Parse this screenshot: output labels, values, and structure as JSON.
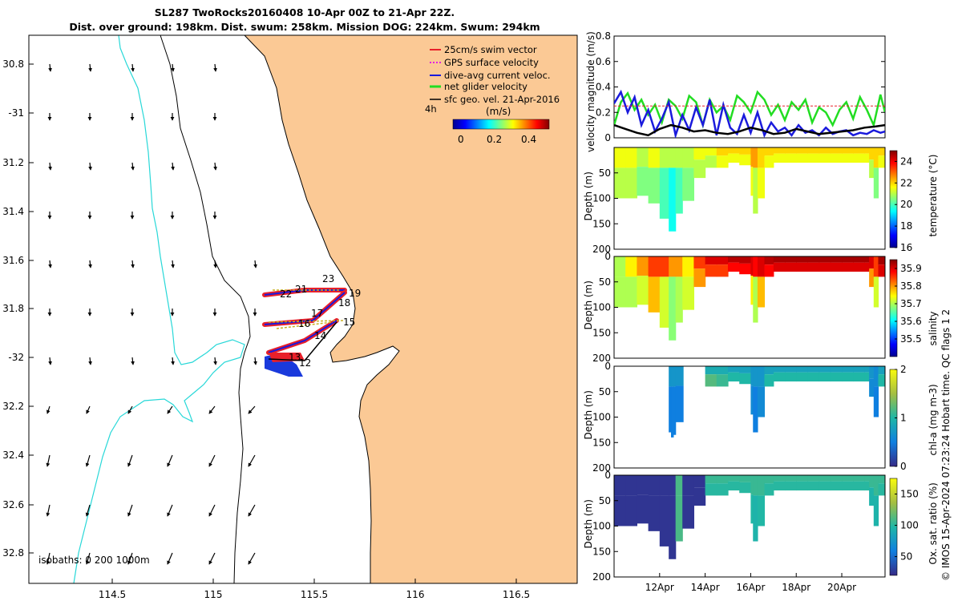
{
  "header": {
    "line1": "SL287 TwoRocks20160408 10-Apr 00Z to 21-Apr 22Z.",
    "line2": "Dist. over ground: 198km. Dist. swum: 258km. Mission DOG: 224km. Swum: 294km"
  },
  "map": {
    "lon_ticks": [
      "114.5",
      "115",
      "115.5",
      "116",
      "116.5"
    ],
    "lat_ticks": [
      "30.8",
      "-31",
      "31.2",
      "31.4",
      "31.6",
      "31.8",
      "-32",
      "32.2",
      "32.4",
      "32.6",
      "32.8"
    ],
    "legend": [
      {
        "label": "25cm/s swim vector",
        "color": "#e8202a"
      },
      {
        "label": "GPS surface velocity",
        "color": "#e020e0"
      },
      {
        "label": "dive-avg current veloc.",
        "color": "#1a1adc"
      },
      {
        "label": "net glider velocity",
        "color": "#22dd22"
      },
      {
        "label": "sfc geo. vel. 21-Apr-2016",
        "color": "#000000"
      }
    ],
    "time_step_label": "4h",
    "colorbar": {
      "title": "(m/s)",
      "ticks": [
        "0",
        "0.2",
        "0.4"
      ]
    },
    "day_labels": [
      "23",
      "21",
      "22",
      "19",
      "18",
      "17",
      "16",
      "15",
      "14",
      "13",
      "12"
    ],
    "isobaths_label": "isobaths: 0   200  1000m"
  },
  "chart_data": [
    {
      "type": "line",
      "title": "velocity magnitude",
      "ylabel": "velocity magnitude (m/s)",
      "ylim": [
        0,
        0.8
      ],
      "yticks": [
        "0",
        "0.2",
        "0.4",
        "0.6",
        "0.8"
      ],
      "xlim_days": [
        10.0,
        21.9
      ],
      "series": [
        {
          "name": "net glider velocity",
          "color": "#22dd22",
          "x": [
            10.0,
            10.3,
            10.6,
            10.9,
            11.2,
            11.5,
            11.8,
            12.1,
            12.4,
            12.7,
            13.0,
            13.3,
            13.6,
            13.9,
            14.2,
            14.5,
            14.8,
            15.1,
            15.4,
            15.7,
            16.0,
            16.3,
            16.6,
            16.9,
            17.2,
            17.5,
            17.8,
            18.1,
            18.4,
            18.7,
            19.0,
            19.3,
            19.6,
            19.9,
            20.2,
            20.5,
            20.8,
            21.1,
            21.4,
            21.7,
            21.9
          ],
          "y": [
            0.1,
            0.28,
            0.35,
            0.22,
            0.3,
            0.18,
            0.26,
            0.12,
            0.3,
            0.25,
            0.15,
            0.33,
            0.28,
            0.1,
            0.3,
            0.2,
            0.25,
            0.14,
            0.33,
            0.28,
            0.2,
            0.36,
            0.3,
            0.18,
            0.26,
            0.14,
            0.28,
            0.22,
            0.3,
            0.12,
            0.24,
            0.2,
            0.1,
            0.22,
            0.28,
            0.15,
            0.32,
            0.22,
            0.1,
            0.34,
            0.2
          ]
        },
        {
          "name": "dive-avg current veloc.",
          "color": "#1a1adc",
          "x": [
            10.0,
            10.3,
            10.6,
            10.9,
            11.2,
            11.5,
            11.8,
            12.1,
            12.4,
            12.7,
            13.0,
            13.3,
            13.6,
            13.9,
            14.2,
            14.5,
            14.8,
            15.1,
            15.4,
            15.7,
            16.0,
            16.3,
            16.6,
            16.9,
            17.2,
            17.5,
            17.8,
            18.1,
            18.4,
            18.7,
            19.0,
            19.3,
            19.6,
            19.9,
            20.2,
            20.5,
            20.8,
            21.1,
            21.4,
            21.7,
            21.9
          ],
          "y": [
            0.27,
            0.36,
            0.2,
            0.32,
            0.1,
            0.22,
            0.05,
            0.15,
            0.28,
            0.02,
            0.18,
            0.06,
            0.24,
            0.1,
            0.3,
            0.02,
            0.26,
            0.08,
            0.03,
            0.18,
            0.04,
            0.2,
            0.02,
            0.12,
            0.05,
            0.08,
            0.02,
            0.1,
            0.04,
            0.06,
            0.02,
            0.08,
            0.03,
            0.05,
            0.06,
            0.02,
            0.04,
            0.03,
            0.06,
            0.04,
            0.05
          ]
        },
        {
          "name": "sfc geo. vel.",
          "color": "#000000",
          "x": [
            10.0,
            10.5,
            11.0,
            11.5,
            12.0,
            12.5,
            13.0,
            13.5,
            14.0,
            14.5,
            15.0,
            15.5,
            16.0,
            16.5,
            17.0,
            17.5,
            18.0,
            18.5,
            19.0,
            19.5,
            20.0,
            20.5,
            21.0,
            21.5,
            21.9
          ],
          "y": [
            0.1,
            0.07,
            0.04,
            0.02,
            0.07,
            0.1,
            0.08,
            0.05,
            0.06,
            0.04,
            0.03,
            0.05,
            0.08,
            0.06,
            0.03,
            0.04,
            0.07,
            0.05,
            0.03,
            0.04,
            0.05,
            0.06,
            0.08,
            0.09,
            0.1
          ]
        },
        {
          "name": "25cm/s swim reference",
          "color": "#e8202a",
          "x": [
            10.0,
            21.9
          ],
          "y": [
            0.25,
            0.25
          ]
        }
      ]
    },
    {
      "type": "heatmap",
      "title": "temperature section",
      "ylabel": "Depth (m)",
      "colorbar_label": "temperature (°C)",
      "clim": [
        16,
        25
      ],
      "cbar_ticks": [
        "16",
        "18",
        "20",
        "22",
        "24"
      ],
      "yticks": [
        "50",
        "100",
        "150",
        "200"
      ],
      "ylim": [
        0,
        200
      ],
      "profile_days": [
        10.0,
        10.5,
        11.0,
        11.5,
        12.0,
        12.4,
        12.7,
        13.0,
        13.5,
        14.0,
        14.5,
        15.0,
        15.5,
        16.0,
        16.1,
        16.3,
        16.6,
        17.0,
        17.5,
        18.0,
        18.5,
        19.0,
        19.5,
        20.0,
        20.5,
        21.0,
        21.2,
        21.4,
        21.6,
        21.9
      ],
      "max_depth_m": [
        100,
        100,
        95,
        110,
        140,
        165,
        130,
        105,
        60,
        40,
        40,
        30,
        35,
        95,
        130,
        100,
        40,
        30,
        30,
        30,
        30,
        30,
        30,
        30,
        30,
        30,
        60,
        100,
        40,
        30
      ],
      "upper_value": [
        21.5,
        21.5,
        21.0,
        21.5,
        21.0,
        21.0,
        21.0,
        21.0,
        21.5,
        21.5,
        22.0,
        22.0,
        22.0,
        22.5,
        22.5,
        22.0,
        22.0,
        22.0,
        22.0,
        22.0,
        22.0,
        22.0,
        22.0,
        22.0,
        22.0,
        22.0,
        22.0,
        22.0,
        22.0,
        22.0
      ],
      "lower_value": [
        21.0,
        21.0,
        20.5,
        20.5,
        20.0,
        19.5,
        20.0,
        20.5,
        21.0,
        21.0,
        21.5,
        21.5,
        21.5,
        21.5,
        21.0,
        21.5,
        21.5,
        21.5,
        21.5,
        21.5,
        21.5,
        21.5,
        21.5,
        21.5,
        21.5,
        21.5,
        21.0,
        20.5,
        21.5,
        21.5
      ]
    },
    {
      "type": "heatmap",
      "title": "salinity section",
      "ylabel": "Depth (m)",
      "colorbar_label": "salinity",
      "clim": [
        35.4,
        35.95
      ],
      "cbar_ticks": [
        "35.5",
        "35.6",
        "35.7",
        "35.8",
        "35.9"
      ],
      "yticks": [
        "0",
        "50",
        "100",
        "150",
        "200"
      ],
      "ylim": [
        0,
        200
      ],
      "profile_days": [
        10.0,
        10.5,
        11.0,
        11.5,
        12.0,
        12.4,
        12.7,
        13.0,
        13.5,
        14.0,
        14.5,
        15.0,
        15.5,
        16.0,
        16.1,
        16.3,
        16.6,
        17.0,
        17.5,
        18.0,
        18.5,
        19.0,
        19.5,
        20.0,
        20.5,
        21.0,
        21.2,
        21.4,
        21.6,
        21.9
      ],
      "max_depth_m": [
        100,
        100,
        95,
        110,
        140,
        165,
        130,
        105,
        60,
        40,
        40,
        30,
        35,
        95,
        130,
        100,
        40,
        30,
        30,
        30,
        30,
        30,
        30,
        30,
        30,
        30,
        60,
        100,
        40,
        30
      ],
      "upper_value": [
        35.7,
        35.75,
        35.8,
        35.85,
        35.85,
        35.8,
        35.8,
        35.75,
        35.85,
        35.9,
        35.9,
        35.92,
        35.92,
        35.9,
        35.88,
        35.9,
        35.92,
        35.93,
        35.93,
        35.93,
        35.93,
        35.93,
        35.93,
        35.93,
        35.93,
        35.93,
        35.9,
        35.85,
        35.93,
        35.93
      ],
      "lower_value": [
        35.7,
        35.7,
        35.72,
        35.78,
        35.72,
        35.68,
        35.7,
        35.72,
        35.8,
        35.85,
        35.85,
        35.88,
        35.88,
        35.75,
        35.7,
        35.78,
        35.88,
        35.9,
        35.9,
        35.9,
        35.9,
        35.9,
        35.9,
        35.9,
        35.9,
        35.9,
        35.8,
        35.72,
        35.9,
        35.9
      ]
    },
    {
      "type": "heatmap",
      "title": "chl-a section",
      "ylabel": "Depth (m)",
      "colorbar_label": "chl-a (mg m-3)",
      "clim": [
        0,
        2
      ],
      "cbar_ticks": [
        "0",
        "1",
        "2"
      ],
      "yticks": [
        "0",
        "50",
        "100",
        "150",
        "200"
      ],
      "ylim": [
        0,
        200
      ],
      "profile_days": [
        12.4,
        12.5,
        12.6,
        12.7,
        14.0,
        14.5,
        15.0,
        15.5,
        16.0,
        16.1,
        16.3,
        16.6,
        17.0,
        17.5,
        18.0,
        18.5,
        19.0,
        19.5,
        20.0,
        20.5,
        21.0,
        21.2,
        21.4,
        21.6,
        21.9
      ],
      "max_depth_m": [
        130,
        140,
        135,
        110,
        40,
        40,
        30,
        35,
        95,
        130,
        100,
        40,
        30,
        30,
        30,
        30,
        30,
        30,
        30,
        30,
        30,
        60,
        100,
        40,
        30
      ],
      "upper_value": [
        0.7,
        0.7,
        0.7,
        0.7,
        0.9,
        0.9,
        0.8,
        0.8,
        0.7,
        0.7,
        0.7,
        0.8,
        0.8,
        0.8,
        0.8,
        0.8,
        0.8,
        0.8,
        0.8,
        0.8,
        0.8,
        0.7,
        0.6,
        0.8,
        0.8
      ],
      "lower_value": [
        0.5,
        0.5,
        0.5,
        0.5,
        1.2,
        1.1,
        1.0,
        1.0,
        0.6,
        0.5,
        0.6,
        1.0,
        1.0,
        1.0,
        1.0,
        1.0,
        1.0,
        1.0,
        1.0,
        1.0,
        1.0,
        0.6,
        0.5,
        1.0,
        1.0
      ]
    },
    {
      "type": "heatmap",
      "title": "oxygen saturation section",
      "ylabel": "Depth (m)",
      "colorbar_label": "Ox. sat. ratio (%)",
      "clim": [
        20,
        175
      ],
      "cbar_ticks": [
        "50",
        "100",
        "150"
      ],
      "yticks": [
        "0",
        "50",
        "100",
        "150",
        "200"
      ],
      "ylim": [
        0,
        200
      ],
      "xticks": [
        "12Apr",
        "14Apr",
        "16Apr",
        "18Apr",
        "20Apr"
      ],
      "xtick_days": [
        12,
        14,
        16,
        18,
        20
      ],
      "profile_days": [
        10.0,
        10.5,
        11.0,
        11.5,
        12.0,
        12.4,
        12.7,
        13.0,
        13.5,
        14.0,
        14.5,
        15.0,
        15.5,
        16.0,
        16.1,
        16.3,
        16.6,
        17.0,
        17.5,
        18.0,
        18.5,
        19.0,
        19.5,
        20.0,
        20.5,
        21.0,
        21.2,
        21.4,
        21.6,
        21.9
      ],
      "max_depth_m": [
        100,
        100,
        95,
        110,
        140,
        165,
        130,
        105,
        60,
        40,
        40,
        30,
        35,
        95,
        130,
        100,
        40,
        30,
        30,
        30,
        30,
        30,
        30,
        30,
        30,
        30,
        60,
        100,
        40,
        30
      ],
      "upper_value": [
        25,
        25,
        25,
        25,
        25,
        25,
        110,
        25,
        25,
        105,
        105,
        105,
        105,
        105,
        105,
        105,
        105,
        105,
        105,
        105,
        105,
        105,
        105,
        105,
        105,
        105,
        105,
        105,
        105,
        105
      ],
      "lower_value": [
        25,
        25,
        25,
        25,
        25,
        25,
        110,
        25,
        25,
        100,
        100,
        100,
        100,
        98,
        95,
        98,
        100,
        100,
        100,
        100,
        100,
        100,
        100,
        100,
        100,
        100,
        95,
        95,
        100,
        100
      ]
    }
  ],
  "credit": "© IMOS 15-Apr-2024 07:23:24 Hobart time. QC flags 1  2"
}
